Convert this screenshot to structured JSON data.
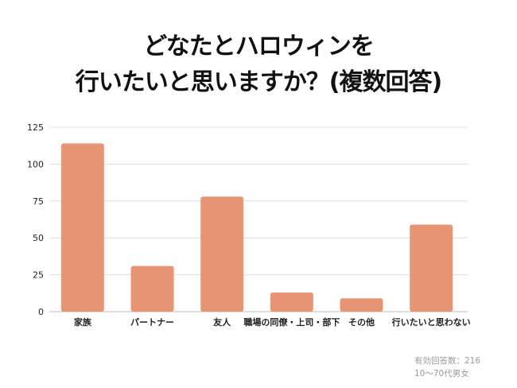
{
  "title_lines": [
    "どなたとハロウィンを",
    "行いたいと思いますか？(複数回答)"
  ],
  "footnotes": [
    "有効回答数：216",
    "10〜70代男女"
  ],
  "chart_data": {
    "type": "bar",
    "title": "どなたとハロウィンを行いたいと思いますか？(複数回答)",
    "categories": [
      "家族",
      "パートナー",
      "友人",
      "職場の同僚・上司・部下",
      "その他",
      "行いたいと思わない"
    ],
    "values": [
      114,
      31,
      78,
      13,
      9,
      59
    ],
    "yticks": [
      0,
      25,
      50,
      75,
      100,
      125
    ],
    "ylim": [
      0,
      125
    ],
    "xlabel": "",
    "ylabel": "",
    "grid": true,
    "colors": {
      "bar": "#E89575",
      "grid": "#dddddd",
      "tick_text": "#222222"
    }
  }
}
